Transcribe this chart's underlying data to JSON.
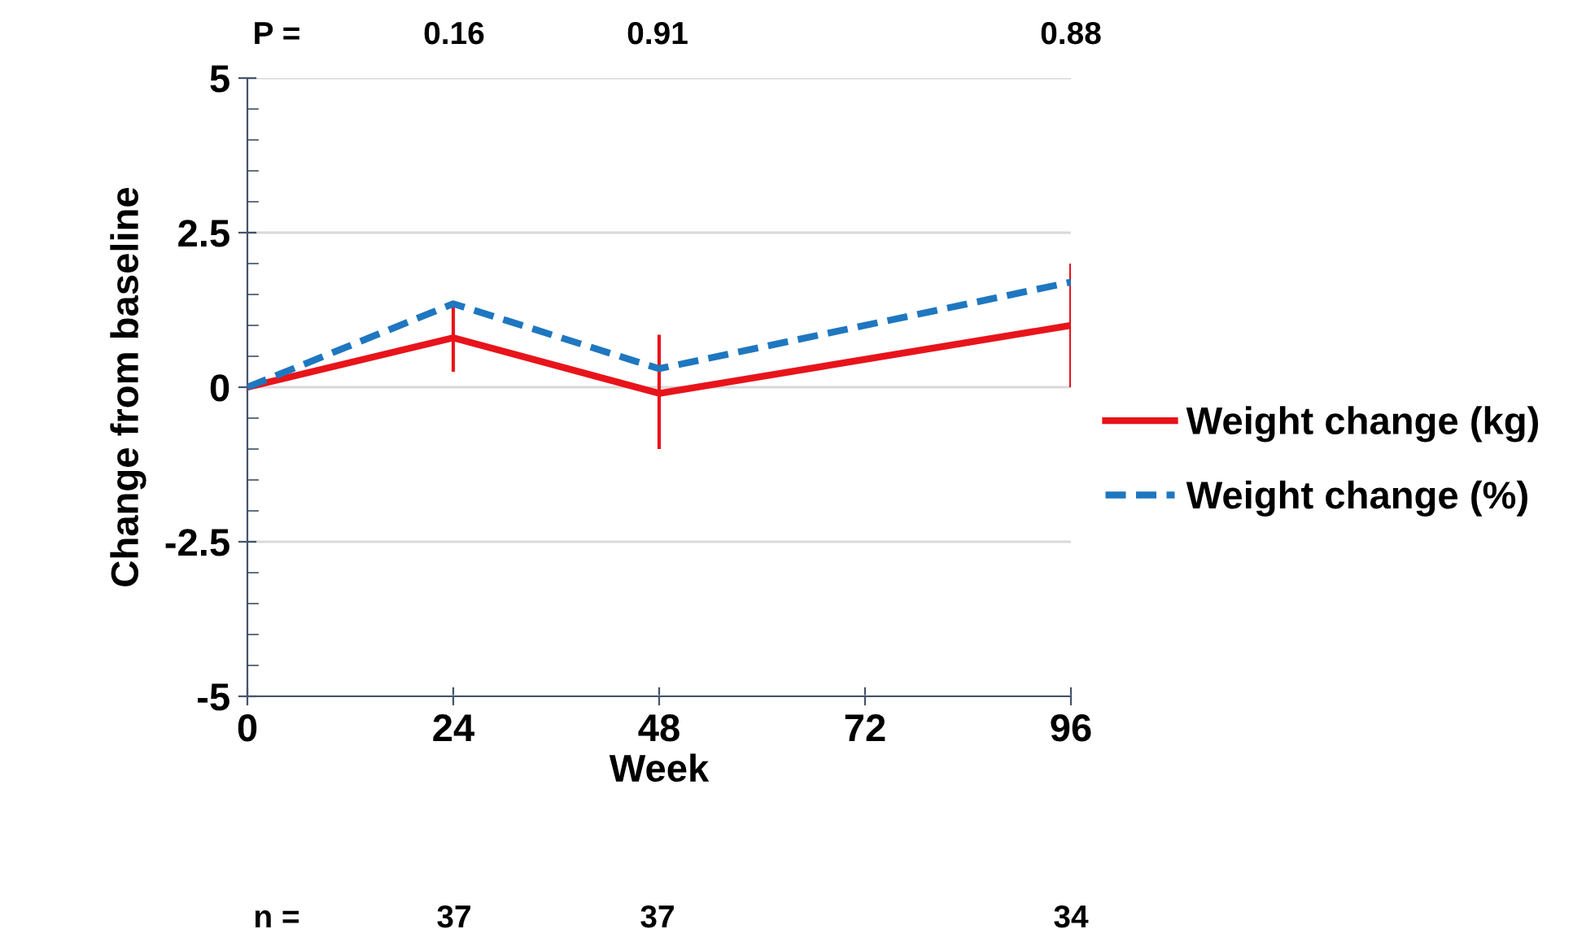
{
  "chart_data": {
    "type": "line",
    "xlabel": "Week",
    "ylabel": "Change from baseline",
    "x": [
      0,
      24,
      48,
      96
    ],
    "series": [
      {
        "name": "Weight change (kg)",
        "color": "#e8141b",
        "values": [
          0,
          0.8,
          -0.1,
          1.0
        ],
        "errors": [
          null,
          [
            0.25,
            1.35
          ],
          [
            -1.0,
            0.85
          ],
          [
            0,
            2.0
          ]
        ],
        "line_style": "solid"
      },
      {
        "name": "Weight change (%)",
        "color": "#1f77c0",
        "values": [
          0,
          1.35,
          0.3,
          1.7
        ],
        "line_style": "dashed"
      }
    ],
    "xlim": [
      0,
      96
    ],
    "xticks": [
      0,
      24,
      48,
      72,
      96
    ],
    "ylim": [
      -5,
      5
    ],
    "yticks": [
      -5,
      -2.5,
      0,
      2.5,
      5
    ],
    "grid": "y",
    "legend": "right",
    "marker": "none",
    "annotations": [
      "P =",
      "0.16",
      "0.91",
      "0.88",
      "n =",
      "37",
      "37",
      "34"
    ]
  }
}
